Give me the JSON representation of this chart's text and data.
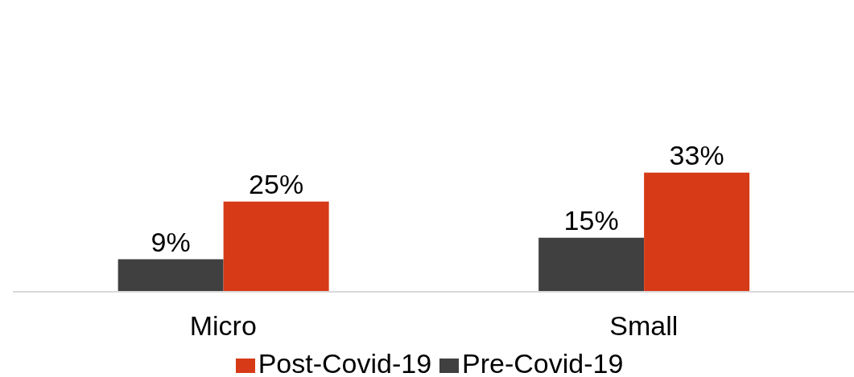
{
  "chart_data": {
    "type": "bar",
    "categories": [
      "Micro",
      "Small"
    ],
    "series": [
      {
        "name": "Pre-Covid-19",
        "color": "#404040",
        "values": [
          9,
          15
        ],
        "value_labels": [
          "9%",
          "15%"
        ]
      },
      {
        "name": "Post-Covid-19",
        "color": "#d63a17",
        "values": [
          25,
          33
        ],
        "value_labels": [
          "25%",
          "33%"
        ]
      }
    ],
    "tick_labels": "x",
    "legend": "bottom"
  }
}
